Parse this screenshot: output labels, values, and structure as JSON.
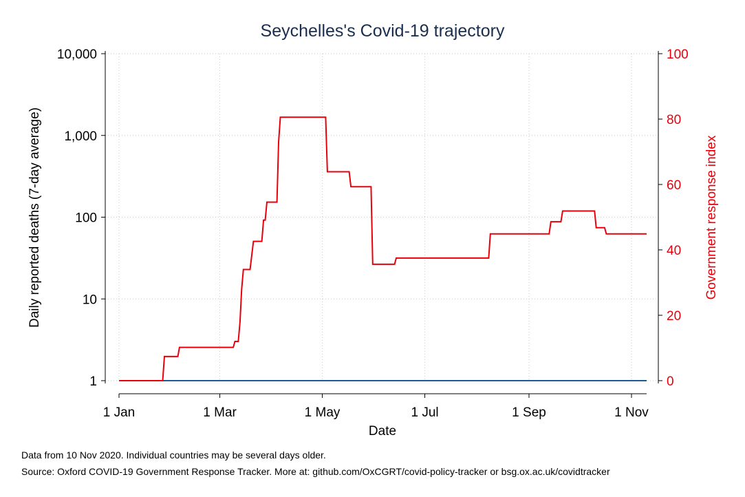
{
  "chart_data": {
    "type": "line",
    "title": "Seychelles's Covid-19 trajectory",
    "xlabel": "Date",
    "ylabel": "Daily reported deaths (7-day average)",
    "ylabel_right": "Government response index",
    "x_ticks": [
      "1 Jan",
      "1 Mar",
      "1 May",
      "1 Jul",
      "1 Sep",
      "1 Nov"
    ],
    "x_tick_days": [
      0,
      60,
      121,
      182,
      244,
      305
    ],
    "x_range_days": [
      0,
      314
    ],
    "y_left": {
      "scale": "log",
      "range": [
        1,
        10000
      ],
      "ticks": [
        1,
        10,
        100,
        1000,
        10000
      ],
      "tick_labels": [
        "1",
        "10",
        "100",
        "1,000",
        "10,000"
      ]
    },
    "y_right": {
      "scale": "linear",
      "range": [
        0,
        100
      ],
      "ticks": [
        0,
        20,
        40,
        60,
        80,
        100
      ],
      "tick_labels": [
        "0",
        "20",
        "40",
        "60",
        "80",
        "100"
      ]
    },
    "grid": true,
    "series": [
      {
        "name": "",
        "axis": "left",
        "color": "#1a5a96",
        "points": [
          [
            0,
            1
          ],
          [
            314,
            1
          ]
        ]
      },
      {
        "name": "",
        "axis": "right",
        "color": "#e8000b",
        "points": [
          [
            0,
            0
          ],
          [
            26,
            0
          ],
          [
            27,
            7.4
          ],
          [
            35,
            7.4
          ],
          [
            36,
            10.2
          ],
          [
            68,
            10.2
          ],
          [
            69,
            12
          ],
          [
            71,
            12
          ],
          [
            72,
            18
          ],
          [
            73,
            28
          ],
          [
            74,
            34
          ],
          [
            78,
            34
          ],
          [
            80,
            42.6
          ],
          [
            85,
            42.6
          ],
          [
            86,
            49.1
          ],
          [
            87,
            49.1
          ],
          [
            88,
            54.6
          ],
          [
            94,
            54.6
          ],
          [
            95,
            73
          ],
          [
            96,
            80.6
          ],
          [
            123,
            80.6
          ],
          [
            124,
            63.9
          ],
          [
            137,
            63.9
          ],
          [
            138,
            59.3
          ],
          [
            150,
            59.3
          ],
          [
            151,
            35.6
          ],
          [
            164,
            35.6
          ],
          [
            165,
            37.5
          ],
          [
            220,
            37.5
          ],
          [
            221,
            44.9
          ],
          [
            256,
            44.9
          ],
          [
            257,
            48.6
          ],
          [
            263,
            48.6
          ],
          [
            264,
            51.9
          ],
          [
            283,
            51.9
          ],
          [
            284,
            46.8
          ],
          [
            289,
            46.8
          ],
          [
            290,
            44.9
          ],
          [
            314,
            44.9
          ]
        ]
      }
    ]
  },
  "footer": {
    "note": "Data from 10 Nov 2020. Individual countries may be several days older.",
    "source": "Source: Oxford COVID-19 Government Response Tracker. More at: github.com/OxCGRT/covid-policy-tracker or bsg.ox.ac.uk/covidtracker"
  }
}
